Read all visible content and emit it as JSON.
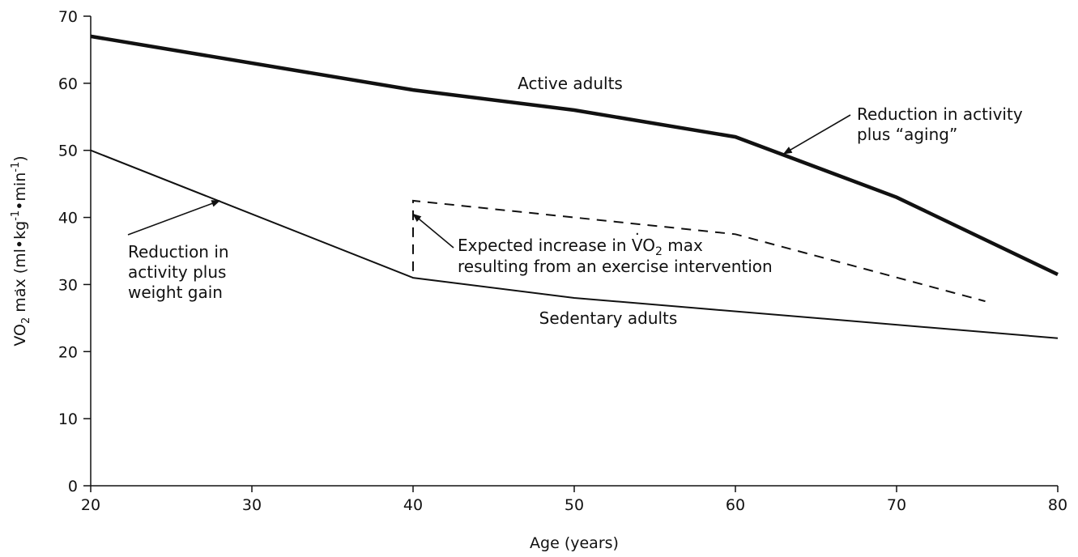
{
  "chart_data": {
    "type": "line",
    "title": "",
    "xlabel": "Age (years)",
    "ylabel": {
      "v": "V",
      "o": "O",
      "sub": "2",
      "rest": " max (ml",
      "bullet1": "•",
      "kg": "kg",
      "exp1": "-1",
      "bullet2": "•",
      "min": "min",
      "exp2": "-1",
      "close": ")"
    },
    "xlim": [
      20,
      80
    ],
    "ylim": [
      0,
      70
    ],
    "x_ticks": [
      "20",
      "30",
      "40",
      "50",
      "60",
      "70",
      "80"
    ],
    "y_ticks": [
      "0",
      "10",
      "20",
      "30",
      "40",
      "50",
      "60",
      "70"
    ],
    "grid": false,
    "legend": "none",
    "series": [
      {
        "name": "Active adults",
        "style": "thick-solid",
        "x": [
          20,
          40,
          50,
          60,
          70,
          80
        ],
        "y": [
          67,
          59,
          56,
          52,
          43,
          31.5
        ]
      },
      {
        "name": "Sedentary adults",
        "style": "thin-solid",
        "x": [
          20,
          40,
          50,
          80
        ],
        "y": [
          50,
          31,
          28,
          22
        ]
      },
      {
        "style": "dashed",
        "x": [
          40,
          40,
          60,
          75.5
        ],
        "y": [
          32,
          42.5,
          37.5,
          27.5
        ]
      }
    ],
    "annotations": {
      "active": {
        "text": "Active adults"
      },
      "sedentary": {
        "text": "Sedentary adults"
      },
      "aging": {
        "lines": [
          "Reduction in activity",
          "plus “aging”"
        ],
        "arrow_to": [
          63,
          49.5
        ]
      },
      "weight": {
        "lines": [
          "Reduction in",
          "activity plus",
          "weight gain"
        ],
        "arrow_to": [
          28,
          42.5
        ]
      },
      "intervention": {
        "line1_prefix": "Expected increase in ",
        "line1_v": "V",
        "line1_o": "O",
        "line1_sub": "2",
        "line1_suffix": " max",
        "line2": "resulting from an exercise intervention",
        "arrow_to": [
          40,
          40.5
        ]
      }
    }
  }
}
